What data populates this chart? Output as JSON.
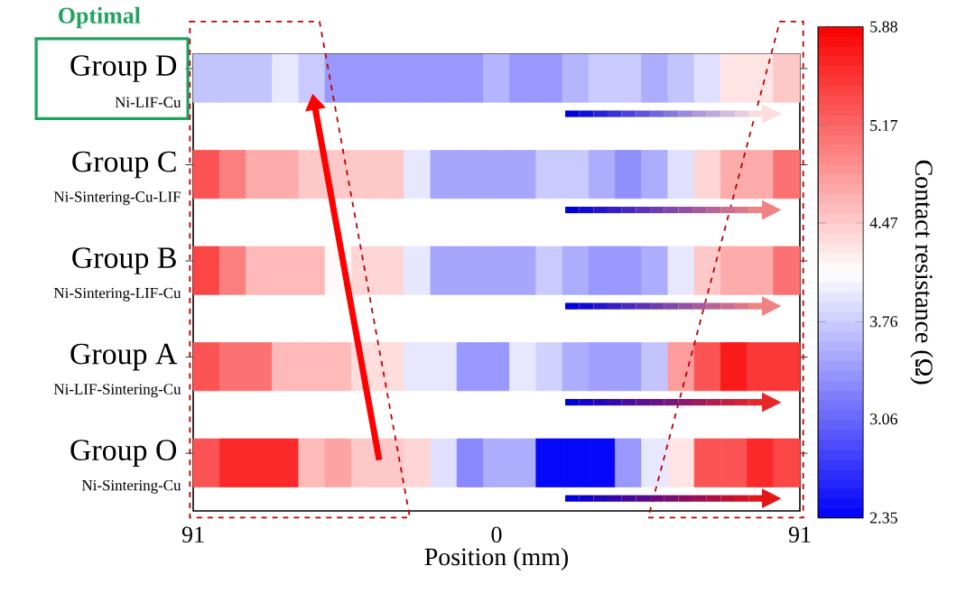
{
  "chart_data": {
    "type": "heatmap",
    "xlabel": "Position (mm)",
    "clabel": "Contact resistance (Ω)",
    "x": [
      -87.04,
      -79.13,
      -71.22,
      -63.3,
      -55.39,
      -47.48,
      -39.57,
      -31.65,
      -23.74,
      -15.83,
      -7.91,
      0,
      7.91,
      15.83,
      23.74,
      31.65,
      39.57,
      47.48,
      55.39,
      63.3,
      71.22,
      79.13,
      87.04
    ],
    "y_categories": [
      "Group D",
      "Group C",
      "Group B",
      "Group A",
      "Group O"
    ],
    "cells": [
      [
        3.7,
        3.7,
        3.7,
        3.95,
        3.75,
        3.4,
        3.4,
        3.4,
        3.4,
        3.4,
        3.4,
        3.6,
        3.4,
        3.4,
        3.6,
        3.75,
        3.75,
        3.55,
        3.7,
        3.9,
        4.3,
        4.3,
        4.5
      ],
      [
        5.3,
        5.0,
        4.7,
        4.7,
        4.5,
        4.5,
        4.5,
        4.5,
        3.95,
        3.5,
        3.5,
        3.5,
        3.5,
        3.75,
        3.75,
        3.55,
        3.35,
        3.55,
        3.9,
        4.4,
        4.7,
        4.7,
        5.1
      ],
      [
        5.4,
        5.0,
        4.6,
        4.6,
        4.6,
        4.15,
        4.4,
        4.4,
        3.95,
        3.5,
        3.5,
        3.5,
        3.5,
        3.75,
        3.55,
        3.4,
        3.4,
        3.55,
        3.95,
        4.5,
        4.7,
        4.7,
        5.1
      ],
      [
        5.3,
        5.1,
        5.1,
        4.6,
        4.6,
        4.6,
        4.35,
        4.35,
        3.95,
        3.95,
        3.4,
        3.4,
        3.95,
        3.8,
        3.55,
        3.45,
        3.45,
        3.7,
        4.8,
        5.3,
        5.7,
        5.5,
        5.5
      ],
      [
        5.3,
        5.6,
        5.6,
        5.6,
        4.6,
        4.75,
        4.5,
        4.5,
        4.4,
        3.9,
        3.3,
        3.55,
        3.55,
        2.4,
        2.4,
        2.4,
        3.4,
        3.95,
        4.3,
        5.3,
        5.3,
        5.6,
        5.4
      ]
    ],
    "clim": [
      2.35,
      5.88
    ],
    "cticks": [
      2.35,
      3.06,
      3.76,
      4.47,
      5.17,
      5.88
    ],
    "xlim": [
      -91,
      91
    ],
    "xticks": [
      {
        "value": -91,
        "label": "91"
      },
      0,
      91
    ],
    "annotations": [
      "Optimal",
      "Ni-LIF-Cu",
      "Ni-Sintering-Cu-LIF",
      "Ni-Sintering-LIF-Cu",
      "Ni-LIF-Sintering-Cu",
      "Ni-Sintering-Cu"
    ]
  }
}
